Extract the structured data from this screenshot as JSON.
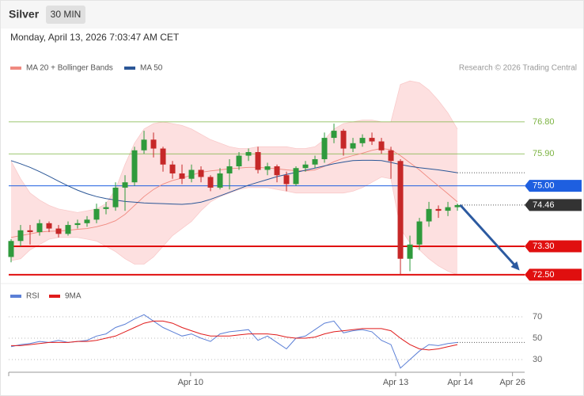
{
  "header": {
    "title": "Silver",
    "timeframe": "30 MIN",
    "timestamp": "Monday, April 13, 2026 7:03:47 AM CET",
    "credit": "Research © 2026 Trading Central"
  },
  "chart_data": [
    {
      "type": "candlestick",
      "xlim": [
        -0.25,
        54.08
      ],
      "ylim": [
        72.32,
        78.0
      ],
      "up_color": "#2f9a3c",
      "down_color": "#c62828",
      "band_color": "#fde0e0",
      "open": [
        73.0,
        73.45,
        73.75,
        73.7,
        73.95,
        73.8,
        73.65,
        73.9,
        73.95,
        74.05,
        74.35,
        74.4,
        74.95,
        75.1,
        76.0,
        76.3,
        76.05,
        75.6,
        75.35,
        75.2,
        75.45,
        75.25,
        74.95,
        75.35,
        75.55,
        75.85,
        75.95,
        75.45,
        75.55,
        75.3,
        75.05,
        75.5,
        75.6,
        75.75,
        76.35,
        76.55,
        76.05,
        76.2,
        76.35,
        76.25,
        76.0,
        75.7,
        72.95,
        73.35,
        74.0,
        74.35,
        74.3,
        74.4
      ],
      "high": [
        73.5,
        73.9,
        73.9,
        74.05,
        74.0,
        73.9,
        74.0,
        74.05,
        74.15,
        74.5,
        74.55,
        75.1,
        75.3,
        76.1,
        76.55,
        76.5,
        76.1,
        75.7,
        75.6,
        75.6,
        75.55,
        75.3,
        75.5,
        75.75,
        75.95,
        76.05,
        76.1,
        75.65,
        75.6,
        75.4,
        75.55,
        75.7,
        75.85,
        76.5,
        76.75,
        76.6,
        76.35,
        76.45,
        76.5,
        76.35,
        76.1,
        75.75,
        73.6,
        74.1,
        74.55,
        74.45,
        74.55,
        74.5
      ],
      "low": [
        72.85,
        73.3,
        73.35,
        73.6,
        73.7,
        73.55,
        73.6,
        73.8,
        73.85,
        73.95,
        74.2,
        74.3,
        74.3,
        75.0,
        75.9,
        75.8,
        75.4,
        75.2,
        75.05,
        75.1,
        75.1,
        74.85,
        74.9,
        74.9,
        75.45,
        75.7,
        75.35,
        75.3,
        75.1,
        74.85,
        75.0,
        75.4,
        75.5,
        75.65,
        76.2,
        75.85,
        75.95,
        76.1,
        76.15,
        75.9,
        75.2,
        72.5,
        72.6,
        73.2,
        73.85,
        74.1,
        74.15,
        74.3
      ],
      "close": [
        73.45,
        73.75,
        73.7,
        73.95,
        73.8,
        73.65,
        73.9,
        73.95,
        74.05,
        74.35,
        74.4,
        74.95,
        75.1,
        76.0,
        76.3,
        76.05,
        75.6,
        75.35,
        75.2,
        75.45,
        75.25,
        74.95,
        75.35,
        75.55,
        75.85,
        75.95,
        75.45,
        75.55,
        75.3,
        75.05,
        75.5,
        75.6,
        75.75,
        76.35,
        76.55,
        76.05,
        76.2,
        76.35,
        76.25,
        76.0,
        75.7,
        72.95,
        73.35,
        74.0,
        74.35,
        74.3,
        74.4,
        74.46
      ],
      "series": [
        {
          "name": "MA 20 + Bollinger Bands",
          "color": "#f08a80",
          "values": [
            73.55,
            73.6,
            73.65,
            73.7,
            73.72,
            73.73,
            73.75,
            73.78,
            73.8,
            73.85,
            73.92,
            74.02,
            74.2,
            74.45,
            74.7,
            74.9,
            75.05,
            75.15,
            75.22,
            75.3,
            75.38,
            75.42,
            75.45,
            75.48,
            75.5,
            75.52,
            75.52,
            75.5,
            75.48,
            75.45,
            75.43,
            75.42,
            75.45,
            75.55,
            75.68,
            75.78,
            75.85,
            75.92,
            76.0,
            76.05,
            76.02,
            75.85,
            75.65,
            75.45,
            75.22,
            75.0,
            74.78,
            74.55
          ],
          "upper": [
            75.7,
            75.2,
            74.8,
            74.6,
            74.45,
            74.35,
            74.3,
            74.25,
            74.3,
            74.35,
            74.5,
            74.9,
            75.6,
            76.2,
            76.6,
            76.75,
            76.8,
            76.75,
            76.7,
            76.6,
            76.45,
            76.3,
            76.2,
            76.1,
            76.05,
            76.05,
            76.1,
            76.1,
            76.1,
            76.1,
            76.05,
            76.05,
            76.1,
            76.3,
            76.6,
            76.75,
            76.8,
            76.85,
            76.85,
            76.8,
            76.8,
            77.85,
            77.95,
            77.9,
            77.7,
            77.4,
            77.05,
            76.6
          ],
          "lower": [
            72.9,
            72.95,
            73.2,
            73.35,
            73.5,
            73.55,
            73.55,
            73.55,
            73.5,
            73.45,
            73.3,
            73.15,
            72.95,
            72.8,
            72.8,
            73.0,
            73.3,
            73.6,
            73.8,
            74.0,
            74.3,
            74.55,
            74.7,
            74.8,
            74.9,
            74.95,
            74.95,
            74.95,
            74.9,
            74.85,
            74.8,
            74.8,
            74.8,
            74.8,
            74.8,
            74.8,
            74.85,
            74.95,
            75.1,
            75.25,
            75.2,
            73.8,
            73.4,
            73.2,
            72.95,
            72.75,
            72.6,
            72.5
          ]
        },
        {
          "name": "MA 50",
          "color": "#2b5797",
          "values": [
            75.71,
            75.62,
            75.52,
            75.4,
            75.27,
            75.13,
            75.0,
            74.88,
            74.78,
            74.7,
            74.64,
            74.6,
            74.56,
            74.54,
            74.52,
            74.51,
            74.5,
            74.49,
            74.48,
            74.5,
            74.54,
            74.62,
            74.72,
            74.82,
            74.92,
            75.02,
            75.1,
            75.18,
            75.26,
            75.32,
            75.38,
            75.44,
            75.5,
            75.56,
            75.62,
            75.67,
            75.71,
            75.72,
            75.72,
            75.71,
            75.66,
            75.6,
            75.55,
            75.51,
            75.48,
            75.45,
            75.41,
            75.37
          ]
        }
      ],
      "levels": [
        {
          "value": 76.8,
          "label": "76.80",
          "color": "#7cb342",
          "box": false,
          "line": "solid",
          "width": 0.8
        },
        {
          "value": 75.9,
          "label": "75.90",
          "color": "#7cb342",
          "box": false,
          "line": "solid",
          "width": 0.8
        },
        {
          "value": 75.0,
          "label": "75.00",
          "color": "#1e5fe0",
          "box": true,
          "line": "solid",
          "width": 1
        },
        {
          "value": 74.46,
          "label": "74.46",
          "color": "#333333",
          "box": true,
          "line": "dotted",
          "width": 1
        },
        {
          "value": 73.3,
          "label": "73.30",
          "color": "#e00f0f",
          "box": true,
          "line": "solid",
          "width": 2
        },
        {
          "value": 72.5,
          "label": "72.50",
          "color": "#e00f0f",
          "box": true,
          "line": "solid",
          "width": 2
        }
      ],
      "forecast": {
        "x": [
          47.3,
          53.55
        ],
        "y": [
          74.46,
          72.62
        ],
        "color": "#2c5aa0"
      }
    },
    {
      "type": "line",
      "xlim": [
        -0.25,
        54.08
      ],
      "ylim": [
        22,
        80
      ],
      "grid": true,
      "yticks": [
        30,
        50,
        70
      ],
      "xticks": [
        {
          "value": 18.9,
          "label": "Apr 10"
        },
        {
          "value": 40.5,
          "label": "Apr 13"
        },
        {
          "value": 47.3,
          "label": "Apr 14"
        },
        {
          "value": 52.8,
          "label": "Apr 26"
        }
      ],
      "series": [
        {
          "name": "RSI",
          "color": "#5b7fd6",
          "values": [
            42,
            44,
            45,
            47,
            46,
            48,
            46,
            47,
            48,
            52,
            54,
            60,
            63,
            68,
            72,
            66,
            60,
            56,
            52,
            54,
            50,
            47,
            54,
            56,
            57,
            58,
            48,
            52,
            46,
            40,
            50,
            52,
            58,
            64,
            66,
            55,
            57,
            58,
            56,
            48,
            44,
            22,
            30,
            38,
            44,
            43,
            45,
            46
          ]
        },
        {
          "name": "9MA",
          "color": "#e01b1b",
          "values": [
            43,
            43,
            44,
            45,
            46,
            46,
            46,
            47,
            47,
            48,
            50,
            52,
            56,
            60,
            64,
            66,
            66,
            64,
            60,
            57,
            54,
            52,
            52,
            52,
            53,
            54,
            54,
            54,
            53,
            51,
            50,
            50,
            51,
            54,
            56,
            57,
            58,
            59,
            59,
            59,
            57,
            50,
            44,
            40,
            39,
            40,
            42,
            44
          ]
        }
      ]
    }
  ]
}
